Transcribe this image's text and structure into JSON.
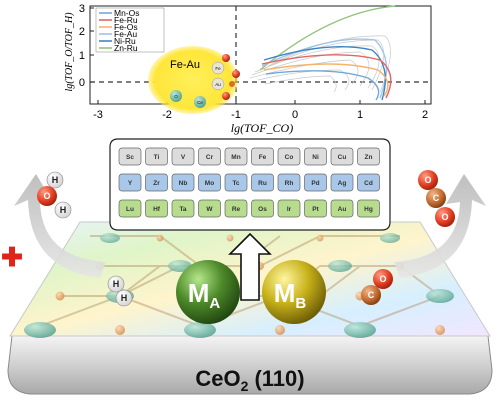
{
  "plot": {
    "ylabel": "lg(TOF_O/TOF_H)",
    "xlabel": "lg(TOF_CO)",
    "x_ticks": [
      "-3",
      "-2",
      "-1",
      "0",
      "1",
      "2"
    ],
    "y_ticks": [
      "0",
      "1",
      "2",
      "3"
    ],
    "legend": [
      {
        "name": "Mn-Os",
        "color": "#6fa8dc"
      },
      {
        "name": "Fe-Ru",
        "color": "#e06666"
      },
      {
        "name": "Fe-Os",
        "color": "#f6b26b"
      },
      {
        "name": "Fe-Au",
        "color": "#9fc5e8"
      },
      {
        "name": "Ni-Ru",
        "color": "#3d85c6"
      },
      {
        "name": "Zn-Ru",
        "color": "#93c47d"
      }
    ],
    "inset_label": "Fe-Au",
    "inset_atoms": [
      "Fe",
      "Au",
      "Ce",
      "O"
    ]
  },
  "periodic_table": {
    "row1": [
      "Sc",
      "Ti",
      "V",
      "Cr",
      "Mn",
      "Fe",
      "Co",
      "Ni",
      "Cu",
      "Zn"
    ],
    "row2": [
      "Y",
      "Zr",
      "Nb",
      "Mo",
      "Tc",
      "Ru",
      "Rh",
      "Pd",
      "Ag",
      "Cd"
    ],
    "row3": [
      "Lu",
      "Hf",
      "Ta",
      "W",
      "Re",
      "Os",
      "Ir",
      "Pt",
      "Au",
      "Hg"
    ],
    "colors": {
      "row1": "#dcdcdc",
      "row2": "#a9c7e8",
      "row3": "#b7dc8e"
    }
  },
  "molecules": {
    "water_atoms": [
      "H",
      "O",
      "H"
    ],
    "h2_atoms": [
      "H",
      "H"
    ],
    "co_atoms": [
      "O",
      "C"
    ],
    "co2_atoms": [
      "O",
      "C",
      "O"
    ]
  },
  "metals": {
    "a": {
      "symbol": "M",
      "sub": "A",
      "color": "#4d8a2a"
    },
    "b": {
      "symbol": "M",
      "sub": "B",
      "color": "#c8b21a"
    }
  },
  "surface_label": {
    "main": "CeO",
    "sub": "2",
    "facet": "(110)"
  },
  "colors": {
    "oxygen": "#e03a1e",
    "carbon": "#c0682a",
    "minus_sign": "#e0241a"
  }
}
